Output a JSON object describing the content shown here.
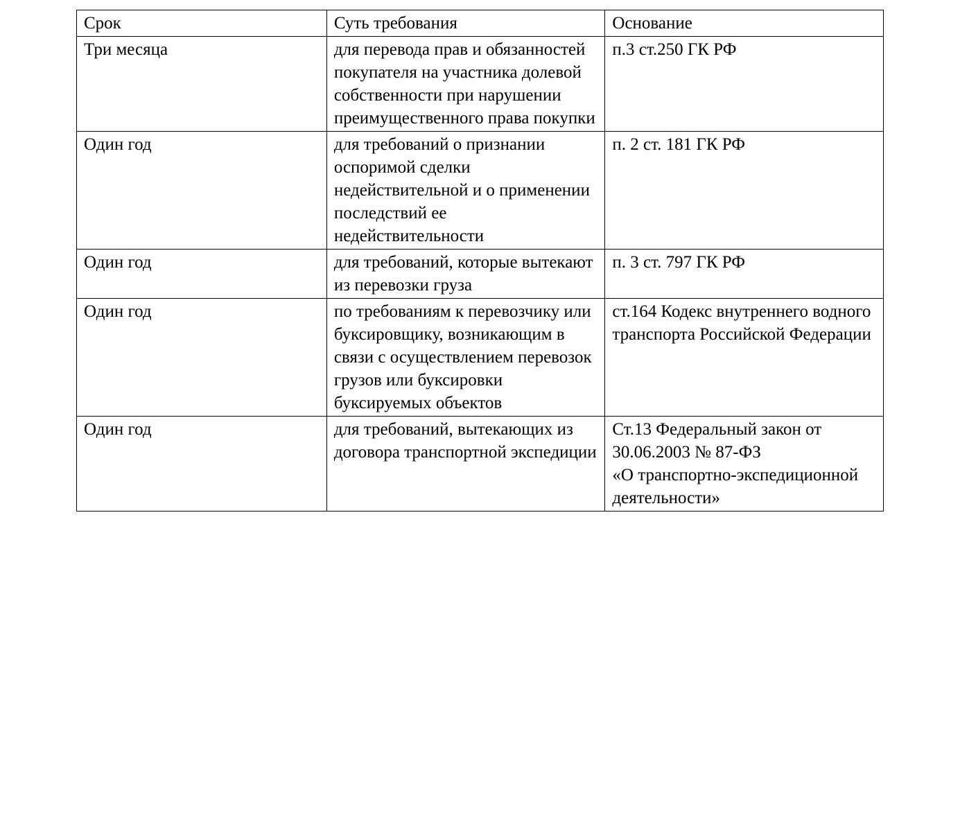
{
  "table": {
    "columns": [
      "Срок",
      "Суть требования",
      "Основание"
    ],
    "col_widths_pct": [
      31,
      34.5,
      34.5
    ],
    "border_color": "#000000",
    "background_color": "#ffffff",
    "text_color": "#000000",
    "font_family": "Times New Roman",
    "font_size_pt": 19,
    "rows": [
      {
        "term": "Три месяца",
        "claim": "для перевода прав и обязанностей покупателя на участника долевой собственности при нарушении преимущественного права покупки",
        "claim_justified": true,
        "basis": "п.3 ст.250 ГК РФ",
        "basis_justified": false,
        "extra_bottom_pad": true
      },
      {
        "term": "Один год",
        "claim": "для требований о признании оспоримой сделки недействительной и о применении последствий ее недействительности",
        "claim_justified": false,
        "basis": "п. 2 ст. 181 ГК РФ",
        "basis_justified": false,
        "extra_bottom_pad": false
      },
      {
        "term": "Один год",
        "claim": "для требований, которые вытекают из перевозки груза",
        "claim_justified": false,
        "basis": "п. 3 ст. 797 ГК РФ",
        "basis_justified": false,
        "extra_bottom_pad": false
      },
      {
        "term": "Один год",
        "claim": "по требованиям к перевозчику или буксировщику, возникающим в связи с осуществлением перевозок грузов или буксировки буксируемых объектов",
        "claim_justified": true,
        "basis": "ст.164 Кодекс внутреннего водного транспорта Российской Федерации",
        "basis_justified": true,
        "extra_bottom_pad": true
      },
      {
        "term": "Один год",
        "claim": "для требований, вытекающих из договора транспортной экспедиции",
        "claim_justified": false,
        "basis": "Ст.13 Федеральный закон от 30.06.2003 № 87-ФЗ «О транспортно-экспедиционной деятельности»",
        "basis_justified": false,
        "extra_bottom_pad": false
      }
    ]
  }
}
